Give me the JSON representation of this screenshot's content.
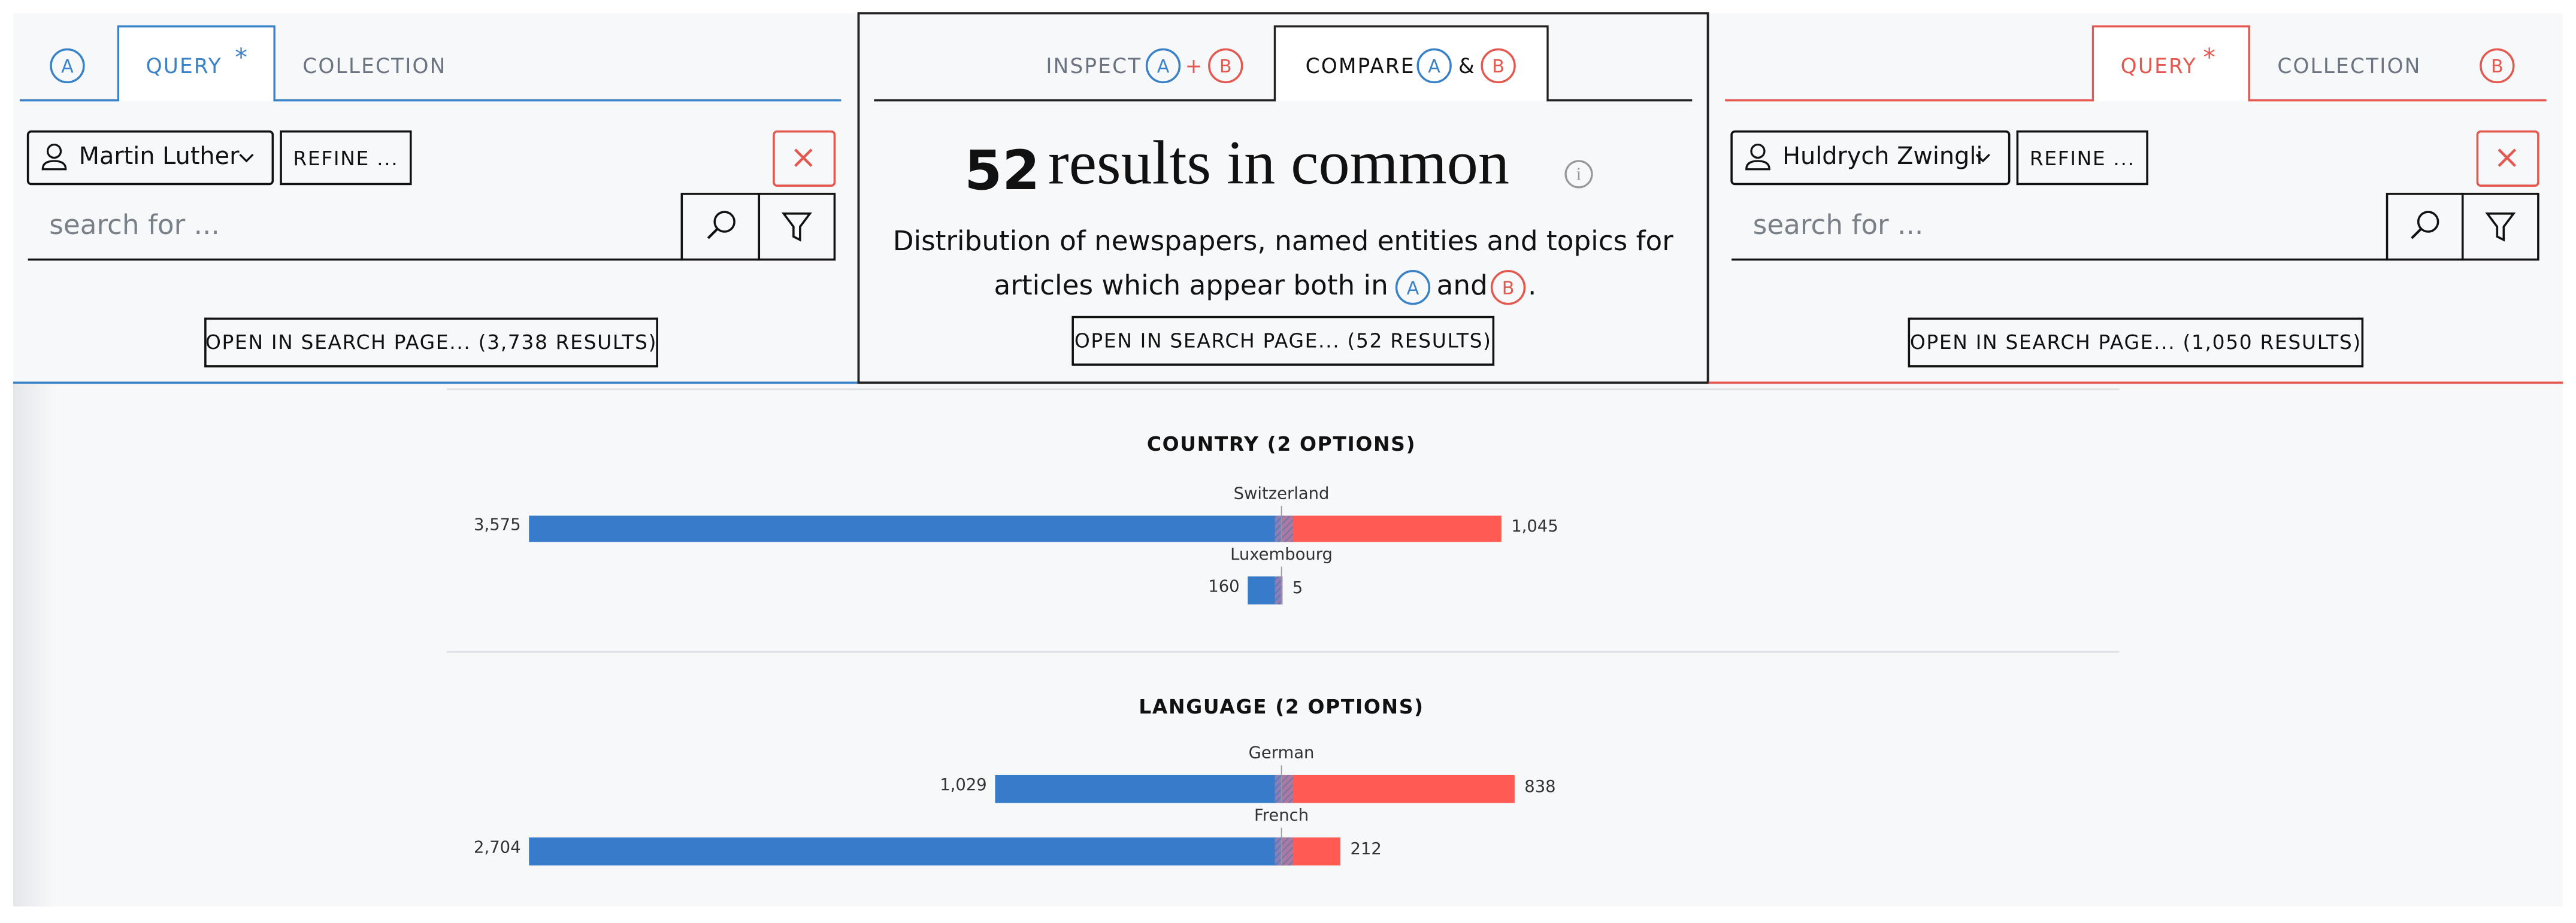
{
  "left_panel": {
    "badge": "A",
    "tab_query": "QUERY",
    "modified_marker": "*",
    "tab_collection": "COLLECTION",
    "entity": "Martin Luther",
    "refine": "REFINE ...",
    "search_placeholder": "search for ...",
    "open_button": "OPEN IN SEARCH PAGE... (3,738 RESULTS)"
  },
  "center_panel": {
    "tab_inspect": "INSPECT",
    "plus": "+",
    "tab_compare": "COMPARE",
    "amp": "&",
    "count": "52",
    "headline": "results in common",
    "description_line1": "Distribution of newspapers, named entities and topics for",
    "description_line2": "articles which appear both in",
    "description_and": "and",
    "description_end": ".",
    "open_button": "OPEN IN SEARCH PAGE... (52 RESULTS)"
  },
  "right_panel": {
    "badge": "B",
    "tab_query": "QUERY",
    "modified_marker": "*",
    "tab_collection": "COLLECTION",
    "entity": "Huldrych Zwingli",
    "refine": "REFINE ...",
    "search_placeholder": "search for ...",
    "open_button": "OPEN IN SEARCH PAGE... (1,050 RESULTS)"
  },
  "facets": [
    {
      "title": "COUNTRY (2 OPTIONS)",
      "items": [
        {
          "label": "Switzerland",
          "a": 3575,
          "a_label": "3,575",
          "b": 1045,
          "b_label": "1,045"
        },
        {
          "label": "Luxembourg",
          "a": 160,
          "b": 5
        }
      ]
    },
    {
      "title": "LANGUAGE (2 OPTIONS)",
      "items": [
        {
          "label": "German",
          "a": 1029,
          "a_label": "1,029",
          "b": 838
        },
        {
          "label": "French",
          "a": 2704,
          "a_label": "2,704",
          "b": 212
        }
      ]
    }
  ]
}
